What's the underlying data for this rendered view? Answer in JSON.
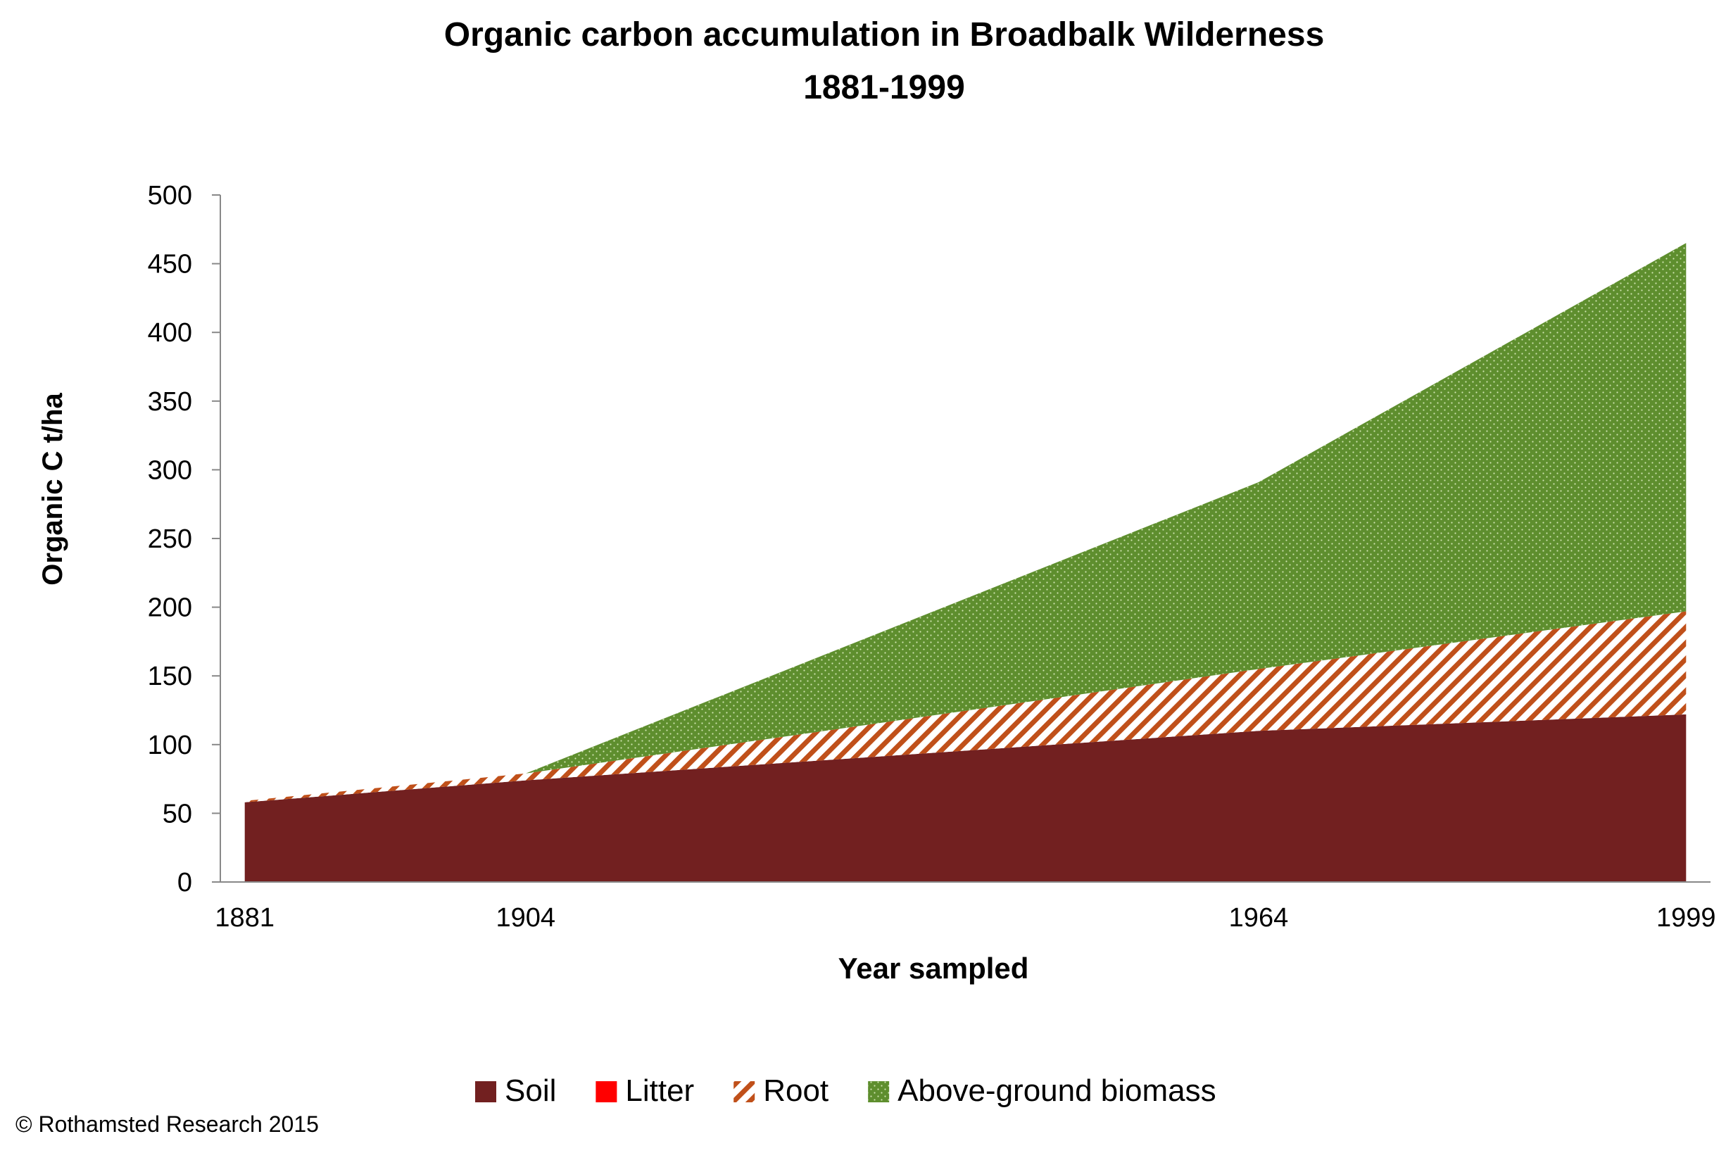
{
  "chart_data": {
    "type": "area",
    "stacked": true,
    "title": "Organic carbon accumulation in Broadbalk Wilderness",
    "subtitle": "1881-1999",
    "xlabel": "Year sampled",
    "ylabel": "Organic C t/ha",
    "x": [
      1881,
      1904,
      1964,
      1999
    ],
    "x_tick_labels": [
      "1881",
      "1904",
      "1964",
      "1999"
    ],
    "xlim": [
      1879,
      2001
    ],
    "ylim": [
      0,
      500
    ],
    "y_ticks": [
      0,
      50,
      100,
      150,
      200,
      250,
      300,
      350,
      400,
      450,
      500
    ],
    "grid": false,
    "legend_position": "bottom",
    "series": [
      {
        "name": "Soil",
        "values": [
          58,
          74,
          110,
          122
        ],
        "color": "#722020",
        "pattern": "solid"
      },
      {
        "name": "Litter",
        "values": [
          0,
          0,
          0,
          0
        ],
        "color": "#ff0000",
        "pattern": "solid"
      },
      {
        "name": "Root",
        "values": [
          1,
          5,
          45,
          75
        ],
        "color": "#c0501a",
        "pattern": "diagonal-stripes"
      },
      {
        "name": "Above-ground biomass",
        "values": [
          0,
          0,
          136,
          268
        ],
        "color": "#5e8e2e",
        "pattern": "dots"
      }
    ]
  },
  "footer": {
    "copyright": "© Rothamsted Research 2015"
  }
}
